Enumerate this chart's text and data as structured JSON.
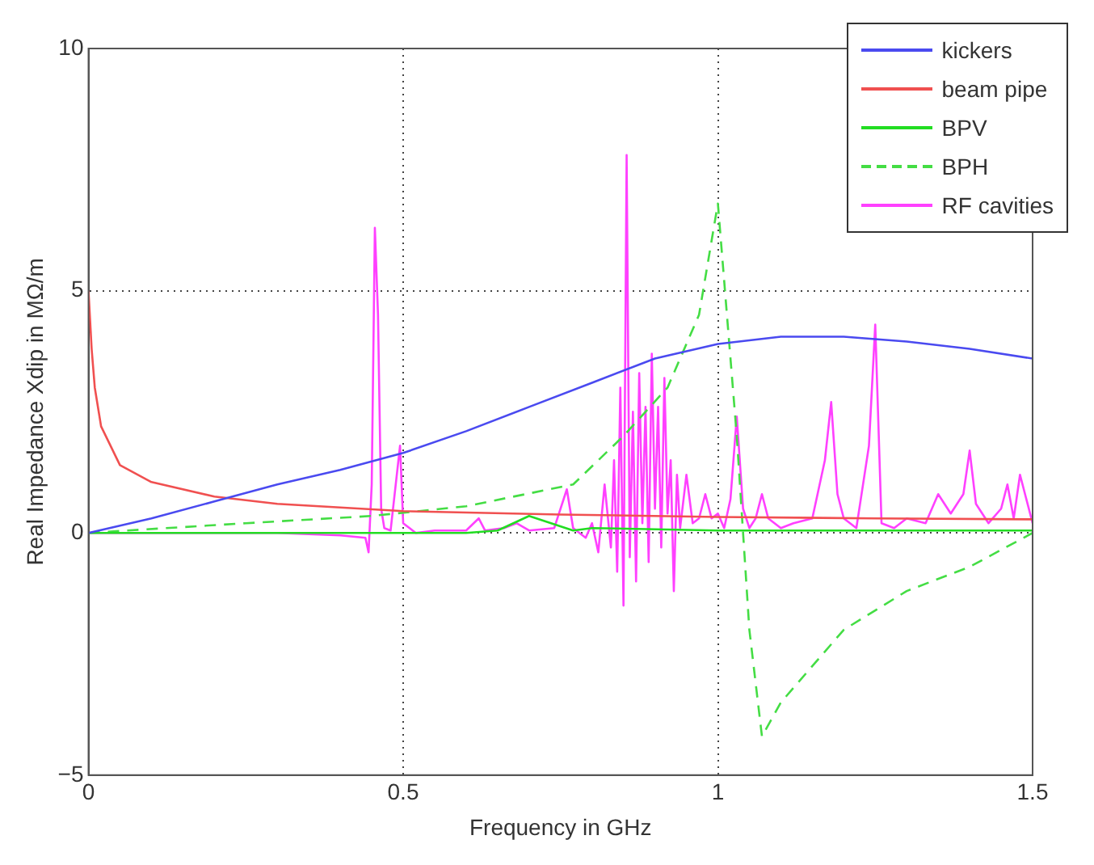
{
  "chart_data": {
    "type": "line",
    "xlabel": "Frequency in GHz",
    "ylabel": "Real Impedance Xdip in MΩ/m",
    "xlim": [
      0,
      1.5
    ],
    "xticks": [
      0,
      0.5,
      1,
      1.5
    ],
    "ylim": [
      -5,
      10
    ],
    "yticks": [
      -5,
      0,
      5,
      10
    ],
    "grid": true,
    "legend": "top right",
    "series": [
      {
        "name": "kickers",
        "color": "#4a4af0",
        "x": [
          0,
          0.1,
          0.2,
          0.3,
          0.4,
          0.5,
          0.6,
          0.7,
          0.8,
          0.9,
          1.0,
          1.1,
          1.2,
          1.3,
          1.4,
          1.5
        ],
        "values": [
          0,
          0.3,
          0.65,
          1.0,
          1.3,
          1.65,
          2.1,
          2.6,
          3.1,
          3.6,
          3.9,
          4.05,
          4.05,
          3.95,
          3.8,
          3.6
        ]
      },
      {
        "name": "beam pipe",
        "color": "#f05050",
        "x": [
          0,
          0.005,
          0.01,
          0.02,
          0.05,
          0.1,
          0.2,
          0.3,
          0.5,
          0.75,
          1.0,
          1.25,
          1.5
        ],
        "values": [
          5,
          3.8,
          3,
          2.2,
          1.4,
          1.05,
          0.75,
          0.6,
          0.45,
          0.38,
          0.33,
          0.3,
          0.28
        ]
      },
      {
        "name": "BPV",
        "color": "#22dd22",
        "x": [
          0,
          0.6,
          0.65,
          0.7,
          0.77,
          0.8,
          1.0,
          1.5
        ],
        "values": [
          0,
          0,
          0.05,
          0.35,
          0.05,
          0.1,
          0.05,
          0.05
        ]
      },
      {
        "name": "BPH",
        "color": "#44dd44",
        "line_style": "dashed",
        "x": [
          0,
          0.25,
          0.45,
          0.6,
          0.77,
          0.85,
          0.92,
          0.97,
          1.0,
          1.03,
          1.05,
          1.07,
          1.1,
          1.2,
          1.3,
          1.4,
          1.5
        ],
        "values": [
          0,
          0.2,
          0.35,
          0.55,
          1.0,
          2.0,
          3.0,
          4.5,
          6.8,
          2,
          -2,
          -4.2,
          -3.5,
          -2,
          -1.2,
          -0.7,
          0
        ]
      },
      {
        "name": "RF cavities",
        "color": "#ff40ff",
        "x": [
          0,
          0.3,
          0.4,
          0.44,
          0.445,
          0.45,
          0.455,
          0.46,
          0.465,
          0.47,
          0.48,
          0.495,
          0.5,
          0.52,
          0.55,
          0.6,
          0.62,
          0.63,
          0.66,
          0.68,
          0.7,
          0.74,
          0.76,
          0.77,
          0.79,
          0.8,
          0.81,
          0.82,
          0.83,
          0.835,
          0.84,
          0.845,
          0.85,
          0.855,
          0.86,
          0.865,
          0.87,
          0.875,
          0.88,
          0.885,
          0.89,
          0.895,
          0.9,
          0.905,
          0.91,
          0.915,
          0.92,
          0.925,
          0.93,
          0.935,
          0.94,
          0.95,
          0.96,
          0.97,
          0.98,
          0.99,
          1.0,
          1.01,
          1.02,
          1.03,
          1.04,
          1.05,
          1.06,
          1.07,
          1.08,
          1.1,
          1.12,
          1.15,
          1.17,
          1.18,
          1.19,
          1.2,
          1.22,
          1.24,
          1.25,
          1.26,
          1.28,
          1.3,
          1.33,
          1.35,
          1.37,
          1.39,
          1.4,
          1.41,
          1.43,
          1.45,
          1.46,
          1.47,
          1.48,
          1.5
        ],
        "values": [
          0,
          0,
          -0.05,
          -0.1,
          -0.4,
          1.0,
          6.3,
          4.5,
          0.5,
          0.1,
          0.05,
          1.8,
          0.2,
          0,
          0.05,
          0.05,
          0.3,
          0.05,
          0.1,
          0.2,
          0.05,
          0.1,
          0.9,
          0.1,
          -0.1,
          0.2,
          -0.4,
          1.0,
          -0.3,
          1.5,
          -0.8,
          3.0,
          -1.5,
          7.8,
          -0.5,
          2.5,
          -1.0,
          3.3,
          0.2,
          2.6,
          -0.6,
          3.7,
          0.5,
          2.6,
          -0.3,
          3.2,
          0.4,
          1.5,
          -1.2,
          1.2,
          0.1,
          1.2,
          0.2,
          0.3,
          0.8,
          0.3,
          0.4,
          0.1,
          0.7,
          2.4,
          0.5,
          0.1,
          0.3,
          0.8,
          0.3,
          0.1,
          0.2,
          0.3,
          1.5,
          2.7,
          0.8,
          0.3,
          0.1,
          1.8,
          4.3,
          0.2,
          0.1,
          0.3,
          0.2,
          0.8,
          0.4,
          0.8,
          1.7,
          0.6,
          0.2,
          0.5,
          1.0,
          0.3,
          1.2,
          0.2
        ]
      }
    ]
  }
}
